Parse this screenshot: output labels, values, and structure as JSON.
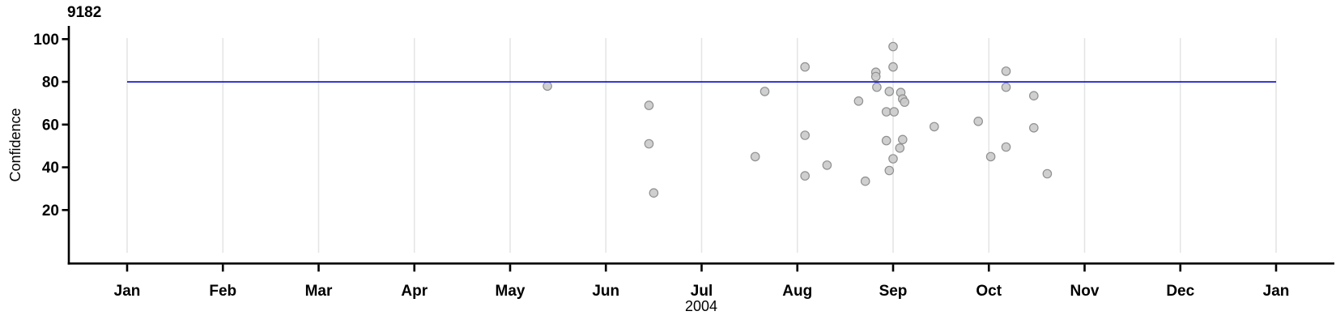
{
  "chart_data": {
    "type": "scatter",
    "title": "9182",
    "xlabel": "2004",
    "ylabel": "Confidence",
    "x_axis": {
      "unit": "months (0 = Jan 1 2004, 12 = Jan 1 2005)",
      "range": [
        0,
        12
      ],
      "tick_labels": [
        "Jan",
        "Feb",
        "Mar",
        "Apr",
        "May",
        "Jun",
        "Jul",
        "Aug",
        "Sep",
        "Oct",
        "Nov",
        "Dec",
        "Jan"
      ],
      "grid": "vertical gridline at every month tick"
    },
    "y_axis": {
      "range": [
        0,
        105
      ],
      "ticks": [
        20,
        40,
        60,
        80,
        100
      ]
    },
    "legend": "none",
    "reference_line": {
      "y": 80,
      "orientation": "horizontal"
    },
    "points": [
      {
        "x": 4.39,
        "y": 78
      },
      {
        "x": 5.45,
        "y": 69
      },
      {
        "x": 5.45,
        "y": 51
      },
      {
        "x": 5.5,
        "y": 28
      },
      {
        "x": 6.56,
        "y": 45
      },
      {
        "x": 6.66,
        "y": 75.5
      },
      {
        "x": 7.08,
        "y": 87
      },
      {
        "x": 7.08,
        "y": 55
      },
      {
        "x": 7.08,
        "y": 36
      },
      {
        "x": 7.31,
        "y": 41
      },
      {
        "x": 7.64,
        "y": 71
      },
      {
        "x": 7.71,
        "y": 33.5
      },
      {
        "x": 7.82,
        "y": 84.5
      },
      {
        "x": 7.82,
        "y": 82.5
      },
      {
        "x": 7.83,
        "y": 77.5
      },
      {
        "x": 7.93,
        "y": 66
      },
      {
        "x": 7.93,
        "y": 52.5
      },
      {
        "x": 7.96,
        "y": 75.5
      },
      {
        "x": 7.96,
        "y": 38.5
      },
      {
        "x": 8.0,
        "y": 96.5
      },
      {
        "x": 8.0,
        "y": 87
      },
      {
        "x": 8.0,
        "y": 44
      },
      {
        "x": 8.01,
        "y": 66
      },
      {
        "x": 8.07,
        "y": 49
      },
      {
        "x": 8.08,
        "y": 75
      },
      {
        "x": 8.1,
        "y": 72
      },
      {
        "x": 8.1,
        "y": 53
      },
      {
        "x": 8.12,
        "y": 70.5
      },
      {
        "x": 8.43,
        "y": 59
      },
      {
        "x": 8.89,
        "y": 61.5
      },
      {
        "x": 9.02,
        "y": 45
      },
      {
        "x": 9.18,
        "y": 85
      },
      {
        "x": 9.18,
        "y": 77.5
      },
      {
        "x": 9.18,
        "y": 49.5
      },
      {
        "x": 9.47,
        "y": 73.5
      },
      {
        "x": 9.47,
        "y": 58.5
      },
      {
        "x": 9.61,
        "y": 37
      }
    ],
    "colors": {
      "reference_line": "#0a0ac8",
      "point_fill": "#cacaca",
      "point_stroke": "#909090",
      "gridline": "#e4e4e4",
      "axis": "#000000"
    }
  }
}
